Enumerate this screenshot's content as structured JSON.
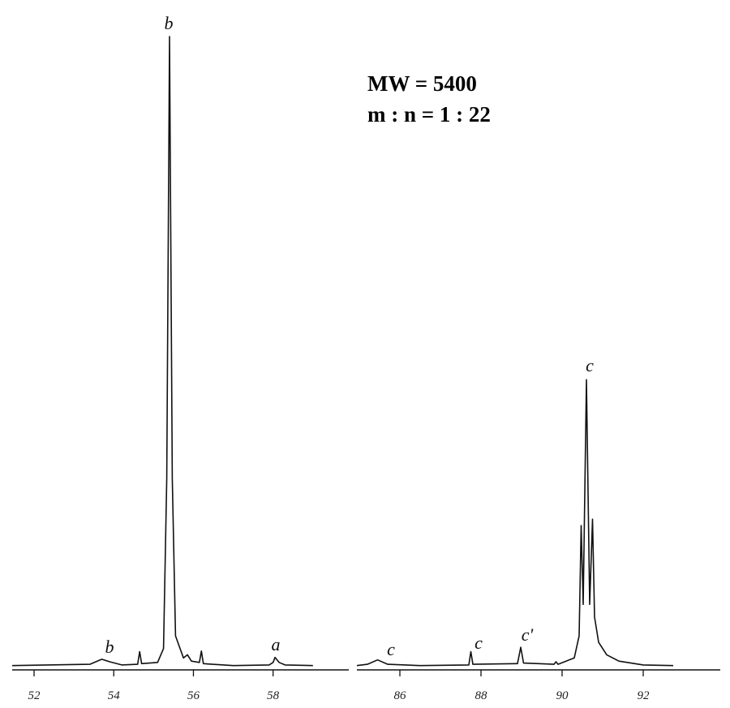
{
  "chart_data": [
    {
      "type": "line",
      "color": "#111111",
      "x": [
        51.45,
        53.4,
        53.7,
        53.9,
        54.2,
        54.6,
        54.65,
        54.7,
        55.1,
        55.25,
        55.33,
        55.4,
        55.47,
        55.55,
        55.75,
        55.85,
        55.95,
        56.15,
        56.2,
        56.25,
        57.0,
        57.9,
        58.0,
        58.05,
        58.15,
        58.3,
        59.0
      ],
      "values": [
        0.3,
        0.5,
        1.3,
        0.9,
        0.4,
        0.5,
        2.5,
        0.6,
        0.8,
        3,
        30,
        100,
        30,
        5,
        1.5,
        2,
        1,
        0.8,
        2.6,
        0.6,
        0.3,
        0.4,
        0.8,
        1.6,
        0.8,
        0.4,
        0.3
      ],
      "xlim": [
        51.45,
        59.9
      ],
      "ylim": [
        0,
        100
      ],
      "xticks": [
        52,
        54,
        56,
        58
      ],
      "peak_labels": [
        "b",
        "b",
        "a"
      ],
      "annotations": [
        "MW = 5400",
        "m : n = 1 : 22"
      ]
    },
    {
      "type": "line",
      "color": "#111111",
      "x": [
        84.94,
        85.2,
        85.45,
        85.7,
        86.5,
        87.7,
        87.75,
        87.8,
        88.9,
        88.98,
        89.05,
        89.8,
        89.85,
        89.9,
        90.3,
        90.42,
        90.47,
        90.52,
        90.6,
        90.68,
        90.75,
        90.8,
        90.9,
        91.1,
        91.4,
        92.0,
        92.74
      ],
      "values": [
        0.3,
        0.5,
        1.2,
        0.5,
        0.3,
        0.4,
        2.5,
        0.5,
        0.6,
        3.2,
        0.7,
        0.5,
        0.9,
        0.5,
        1.5,
        5,
        22.5,
        10,
        45.6,
        10,
        23.5,
        8,
        4,
        2,
        1,
        0.4,
        0.3
      ],
      "xlim": [
        84.94,
        93.9
      ],
      "ylim": [
        0,
        100
      ],
      "xticks": [
        86,
        88,
        90,
        92
      ],
      "peak_labels": [
        "c",
        "c",
        "c'",
        "c"
      ]
    }
  ]
}
